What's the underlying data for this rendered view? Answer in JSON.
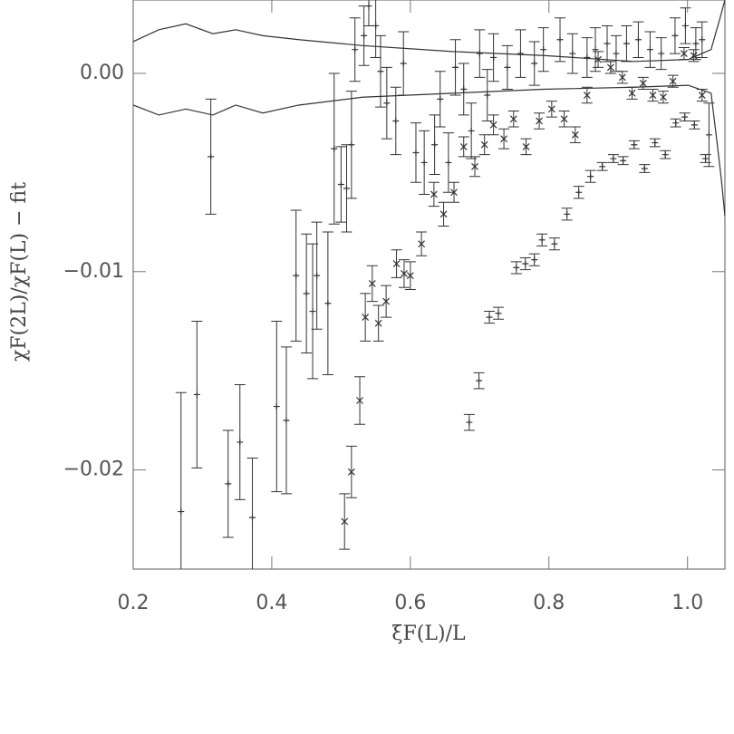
{
  "chart_data": {
    "type": "scatter",
    "x_label": "ξF(L)/L",
    "y_label": "χF(2L)/χF(L)  −  fit",
    "xlim": [
      0.2,
      1.054
    ],
    "ylim": [
      -0.025,
      0.0037
    ],
    "xticks": [
      0.2,
      0.4,
      0.6,
      0.8,
      {
        "value": 1,
        "label": "1.0"
      }
    ],
    "yticks": [
      {
        "value": 0,
        "label": "0.00"
      },
      {
        "value": -0.01,
        "label": "−0.01"
      },
      {
        "value": -0.02,
        "label": "−0.02"
      }
    ],
    "color": "#333",
    "series": [
      {
        "marker": "+",
        "x": [
          0.269,
          0.292,
          0.312,
          0.337,
          0.354,
          0.372,
          0.407,
          0.421,
          0.435,
          0.45,
          0.459,
          0.465,
          0.481,
          0.49,
          0.5,
          0.508,
          0.515,
          0.52,
          0.533,
          0.54,
          0.55,
          0.557,
          0.566,
          0.579,
          0.59,
          0.608,
          0.62,
          0.635,
          0.643,
          0.655,
          0.665,
          0.677,
          0.688,
          0.7,
          0.711,
          0.72,
          0.74,
          0.759,
          0.779,
          0.792,
          0.816,
          0.834,
          0.855,
          0.867,
          0.884,
          0.897,
          0.912,
          0.929,
          0.946,
          0.962,
          0.982,
          0.997,
          1.012,
          1.021,
          1.031
        ],
        "values": [
          -0.0221,
          -0.0162,
          -0.0042,
          -0.0207,
          -0.0186,
          -0.0224,
          -0.0168,
          -0.0175,
          -0.0102,
          -0.0111,
          -0.012,
          -0.0102,
          -0.0116,
          -0.0038,
          -0.0056,
          -0.0058,
          -0.0036,
          0.0012,
          0.0019,
          0.0034,
          0.0024,
          0.0001,
          -0.0015,
          -0.0024,
          0.0005,
          -0.004,
          -0.0045,
          -0.0036,
          -0.0013,
          -0.0045,
          0.0003,
          -0.0008,
          -0.0029,
          0.001,
          -0.0011,
          0.0008,
          0.0003,
          0.001,
          0.0005,
          0.0012,
          0.0017,
          0.001,
          0.0008,
          0.0012,
          0.0015,
          0.001,
          0.0015,
          0.0017,
          0.0012,
          0.001,
          0.0019,
          0.0024,
          0.0015,
          0.0017,
          -0.0031
        ],
        "errors": [
          0.006,
          0.0037,
          0.0029,
          0.0027,
          0.0029,
          0.003,
          0.0043,
          0.0037,
          0.0033,
          0.003,
          0.0034,
          0.0027,
          0.0036,
          0.0038,
          0.0019,
          0.0022,
          0.0027,
          0.0016,
          0.0015,
          0.001,
          0.0016,
          0.0018,
          0.0018,
          0.0017,
          0.0016,
          0.0015,
          0.0016,
          0.0015,
          0.0014,
          0.0015,
          0.0014,
          0.0013,
          0.0014,
          0.0012,
          0.0013,
          0.0012,
          0.0011,
          0.0012,
          0.0011,
          0.0011,
          0.0011,
          0.001,
          0.001,
          0.0011,
          0.0009,
          0.0009,
          0.0009,
          0.0009,
          0.0009,
          0.0008,
          0.0009,
          0.0009,
          0.0008,
          0.0009,
          0.0016
        ]
      },
      {
        "marker": "x",
        "x": [
          0.505,
          0.515,
          0.527,
          0.535,
          0.545,
          0.554,
          0.565,
          0.58,
          0.591,
          0.6,
          0.616,
          0.634,
          0.648,
          0.663,
          0.677,
          0.693,
          0.707,
          0.72,
          0.735,
          0.749,
          0.767,
          0.786,
          0.804,
          0.822,
          0.838,
          0.855,
          0.871,
          0.889,
          0.906,
          0.92,
          0.936,
          0.95,
          0.965,
          0.979,
          0.995,
          1.009,
          1.021
        ],
        "values": [
          -0.0226,
          -0.0201,
          -0.0165,
          -0.0123,
          -0.0106,
          -0.0126,
          -0.0115,
          -0.0096,
          -0.0101,
          -0.0102,
          -0.0086,
          -0.0061,
          -0.0071,
          -0.006,
          -0.0037,
          -0.0047,
          -0.0036,
          -0.0026,
          -0.0033,
          -0.0023,
          -0.0037,
          -0.0024,
          -0.0018,
          -0.0023,
          -0.0031,
          -0.0011,
          0.0007,
          0.0003,
          -0.0002,
          -0.001,
          -0.0005,
          -0.0011,
          -0.0012,
          -0.0004,
          0.001,
          0.0009,
          -0.0011
        ],
        "errors": [
          0.0014,
          0.0013,
          0.0012,
          0.0012,
          0.0009,
          0.0009,
          0.0008,
          0.0007,
          0.0007,
          0.0007,
          0.0006,
          0.0006,
          0.0006,
          0.0005,
          0.0005,
          0.0005,
          0.0005,
          0.0005,
          0.0005,
          0.0004,
          0.0004,
          0.0004,
          0.0004,
          0.0004,
          0.0004,
          0.0004,
          0.0004,
          0.0003,
          0.0003,
          0.0003,
          0.0003,
          0.0003,
          0.0003,
          0.0003,
          0.0003,
          0.0003,
          0.0003
        ]
      },
      {
        "marker": "+",
        "x": [
          0.685,
          0.699,
          0.714,
          0.727,
          0.753,
          0.766,
          0.779,
          0.79,
          0.808,
          0.826,
          0.843,
          0.86,
          0.877,
          0.893,
          0.907,
          0.923,
          0.938,
          0.953,
          0.968,
          0.983,
          0.996,
          1.01,
          1.026
        ],
        "values": [
          -0.0176,
          -0.0155,
          -0.0123,
          -0.0121,
          -0.0098,
          -0.0096,
          -0.0094,
          -0.0084,
          -0.0086,
          -0.0071,
          -0.006,
          -0.0052,
          -0.0047,
          -0.0043,
          -0.0044,
          -0.0036,
          -0.0048,
          -0.0035,
          -0.0041,
          -0.0025,
          -0.0022,
          -0.0026,
          -0.0043
        ],
        "errors": [
          0.0004,
          0.0004,
          0.0003,
          0.0003,
          0.0003,
          0.0003,
          0.0003,
          0.0003,
          0.0003,
          0.0003,
          0.0003,
          0.0003,
          0.0002,
          0.0002,
          0.0002,
          0.0002,
          0.0002,
          0.0002,
          0.0002,
          0.0002,
          0.0002,
          0.0002,
          0.0002
        ]
      },
      {
        "style": "line",
        "x": [
          0.2,
          0.237,
          0.276,
          0.315,
          0.348,
          0.387,
          0.439,
          0.531,
          0.661,
          0.792,
          0.923,
          1.001,
          1.034,
          1.047,
          1.054
        ],
        "values": [
          0.0016,
          0.0022,
          0.0025,
          0.002,
          0.0022,
          0.0019,
          0.0017,
          0.0014,
          0.0011,
          0.0009,
          0.0006,
          0.0007,
          0.0012,
          0.0028,
          0.0037
        ]
      },
      {
        "style": "line",
        "x": [
          0.2,
          0.237,
          0.276,
          0.315,
          0.348,
          0.387,
          0.439,
          0.531,
          0.661,
          0.792,
          0.923,
          1.001,
          1.034,
          1.043,
          1.049,
          1.054
        ],
        "values": [
          -0.0016,
          -0.0021,
          -0.0018,
          -0.0021,
          -0.0016,
          -0.002,
          -0.0016,
          -0.0012,
          -0.001,
          -0.0008,
          -0.0007,
          -0.0006,
          -0.001,
          -0.0036,
          -0.0054,
          -0.0072
        ]
      }
    ]
  }
}
